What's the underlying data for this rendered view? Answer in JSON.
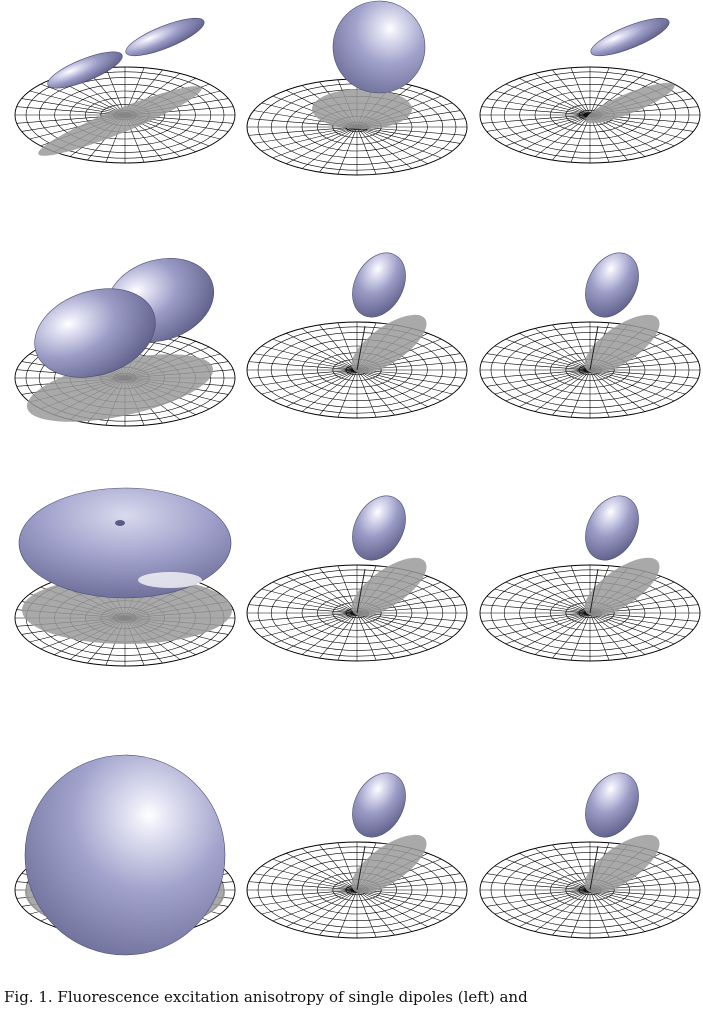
{
  "figure": {
    "rows": 4,
    "cols": 3,
    "colors": {
      "surface_base": "#9b9cc6",
      "surface_dark": "#5f6090",
      "surface_light": "#ffffff",
      "shadow": "#9a9a9a",
      "grid_line": "#000000"
    },
    "panels": [
      {
        "row": 1,
        "col": 1,
        "shape": "two-lobed-dipole"
      },
      {
        "row": 1,
        "col": 2,
        "shape": "sphere"
      },
      {
        "row": 1,
        "col": 3,
        "shape": "single-lobe"
      },
      {
        "row": 2,
        "col": 1,
        "shape": "peanut"
      },
      {
        "row": 2,
        "col": 2,
        "shape": "ellipsoid"
      },
      {
        "row": 2,
        "col": 3,
        "shape": "ellipsoid"
      },
      {
        "row": 3,
        "col": 1,
        "shape": "torus"
      },
      {
        "row": 3,
        "col": 2,
        "shape": "ellipsoid"
      },
      {
        "row": 3,
        "col": 3,
        "shape": "ellipsoid"
      },
      {
        "row": 4,
        "col": 1,
        "shape": "sphere"
      },
      {
        "row": 4,
        "col": 2,
        "shape": "ellipsoid"
      },
      {
        "row": 4,
        "col": 3,
        "shape": "ellipsoid"
      }
    ]
  },
  "caption": {
    "text": "Fig. 1. Fluorescence excitation anisotropy of single dipoles (left) and"
  }
}
